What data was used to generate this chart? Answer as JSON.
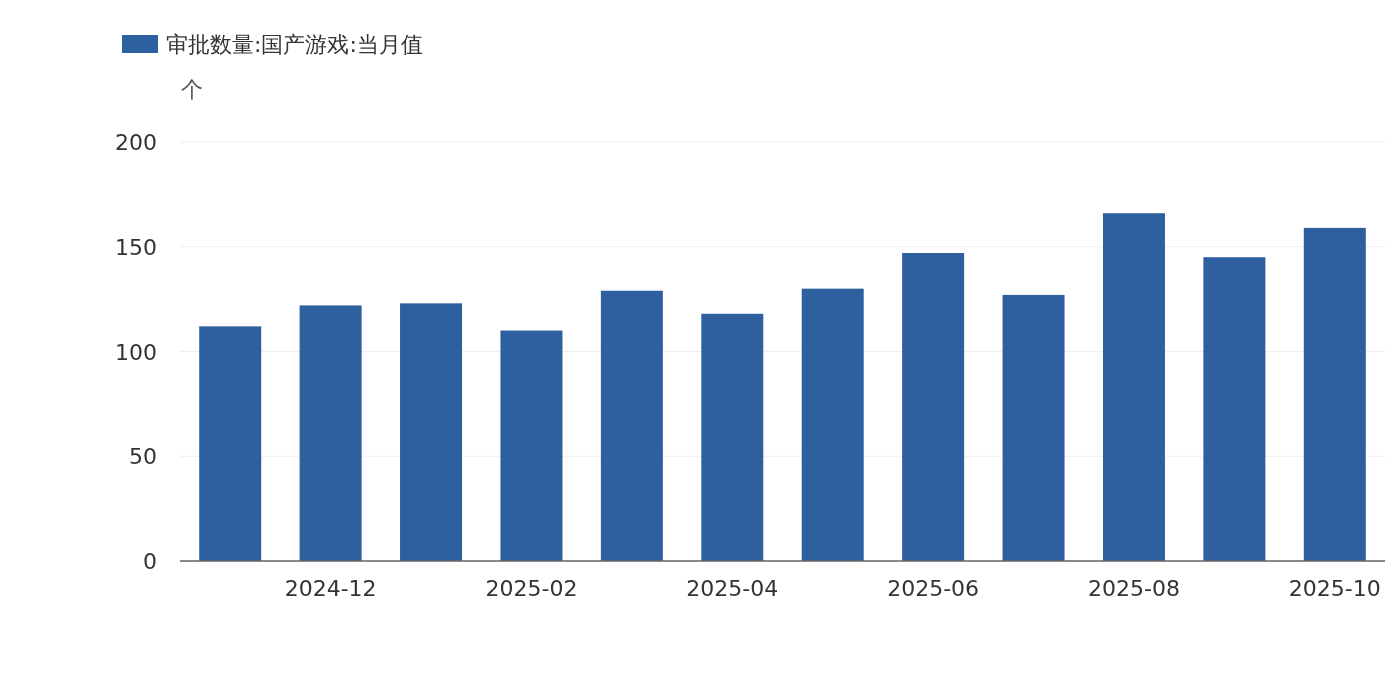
{
  "chart_data": {
    "type": "bar",
    "ylabel": "个",
    "categories": [
      null,
      "2024-12",
      null,
      "2025-02",
      null,
      "2025-04",
      null,
      "2025-06",
      null,
      "2025-08",
      null,
      "2025-10"
    ],
    "series": [
      {
        "name": "审批数量:国产游戏:当月值",
        "color": "#2e5f9e",
        "values": [
          112,
          122,
          123,
          110,
          129,
          118,
          130,
          147,
          127,
          166,
          145,
          159
        ]
      }
    ],
    "ylim": [
      0,
      200
    ],
    "yticks": [
      0,
      50,
      100,
      150,
      200
    ],
    "grid": "y",
    "legend": "top left"
  }
}
